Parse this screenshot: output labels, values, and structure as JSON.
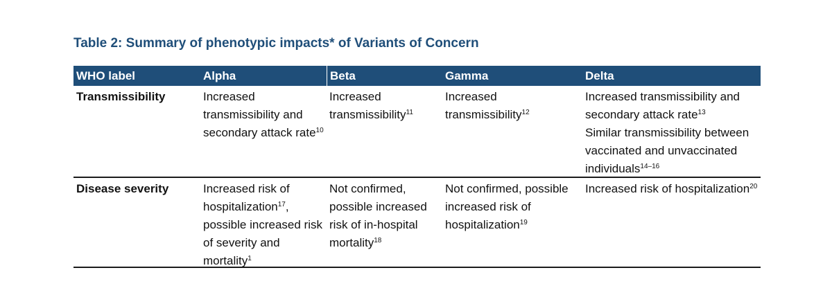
{
  "caption": "Table 2: Summary of phenotypic impacts* of Variants of Concern",
  "headers": [
    "WHO label",
    "Alpha",
    "Beta",
    "Gamma",
    "Delta"
  ],
  "rows": [
    {
      "label": "Transmissibility",
      "alpha": {
        "text": "Increased transmissibility and secondary attack rate",
        "ref": "10"
      },
      "beta": {
        "text": "Increased transmissibility",
        "ref": "11"
      },
      "gamma": {
        "text": "Increased transmissibility",
        "ref": "12"
      },
      "delta": [
        {
          "text": "Increased transmissibility and secondary attack rate",
          "ref": "13"
        },
        {
          "text": "Similar transmissibility between vaccinated and unvaccinated individuals",
          "ref": "14–16"
        }
      ]
    },
    {
      "label": "Disease severity",
      "alpha": {
        "text": "Increased risk of hospitalization",
        "ref": "17",
        "text2": ", possible increased risk of severity and mortality",
        "ref2": "1"
      },
      "beta": {
        "text": "Not confirmed, possible increased risk of in-hospital mortality",
        "ref": "18"
      },
      "gamma": {
        "text": "Not confirmed, possible increased risk of hospitalization",
        "ref": "19"
      },
      "delta": {
        "text": "Increased risk of hospitalization",
        "ref": "20"
      }
    }
  ]
}
